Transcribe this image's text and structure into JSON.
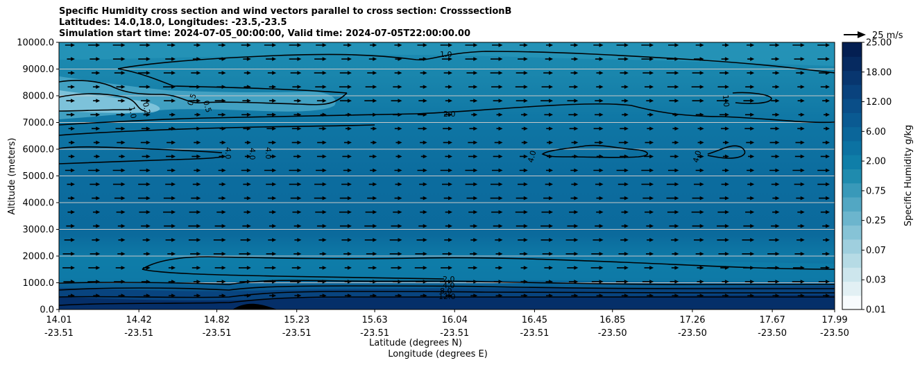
{
  "title_lines": [
    "Specific Humidity cross section and wind vectors parallel to cross section: CrosssectionB",
    "Latitudes: 14.0,18.0, Longitudes: -23.5,-23.5",
    "Simulation start time: 2024-07-05_00:00:00, Valid time: 2024-07-05T22:00:00.00"
  ],
  "chart_data": {
    "type": "contour",
    "title": "Specific Humidity cross section and wind vectors parallel to cross section: CrosssectionB",
    "ylabel": "Altitude (meters)",
    "xlabel_lat": "Latitude (degrees N)",
    "xlabel_lon": "Longitude (degrees E)",
    "ylim": [
      0,
      10000
    ],
    "yticks": [
      "0.0",
      "1000.0",
      "2000.0",
      "3000.0",
      "4000.0",
      "5000.0",
      "6000.0",
      "7000.0",
      "8000.0",
      "9000.0",
      "10000.0"
    ],
    "xticks_lat": [
      "14.01",
      "14.42",
      "14.82",
      "15.23",
      "15.63",
      "16.04",
      "16.45",
      "16.85",
      "17.26",
      "17.67",
      "17.99"
    ],
    "xticks_lon": [
      "-23.51",
      "-23.51",
      "-23.51",
      "-23.51",
      "-23.51",
      "-23.51",
      "-23.51",
      "-23.50",
      "-23.50",
      "-23.50",
      "-23.50"
    ],
    "grid": "horizontal",
    "colorbar": {
      "label": "Specific Humidity g/kg",
      "ticks": [
        "0.01",
        "0.03",
        "0.07",
        "0.25",
        "0.75",
        "2.00",
        "6.00",
        "12.00",
        "18.00",
        "25.00"
      ],
      "colors": [
        "#f7fbfd",
        "#e2f0f4",
        "#cde6ed",
        "#b6dbe5",
        "#9fcfde",
        "#86c3d6",
        "#6cb5cd",
        "#52a7c3",
        "#3999b9",
        "#1f8bae",
        "#0f7ea8",
        "#0c72a2",
        "#0b669a",
        "#0a5a92",
        "#0a4e88",
        "#09427d",
        "#08366f",
        "#062a60",
        "#041f52"
      ]
    },
    "contour_labels": [
      "1.0",
      "2.0",
      "0.2",
      "1.0",
      "0.5",
      "0.5",
      "4.0",
      "4.0",
      "4.0",
      "4.0",
      "4.0",
      "1.0",
      "2.0",
      "4.0",
      "8.0",
      "12.0"
    ],
    "quiver_key": "25 m/s"
  }
}
